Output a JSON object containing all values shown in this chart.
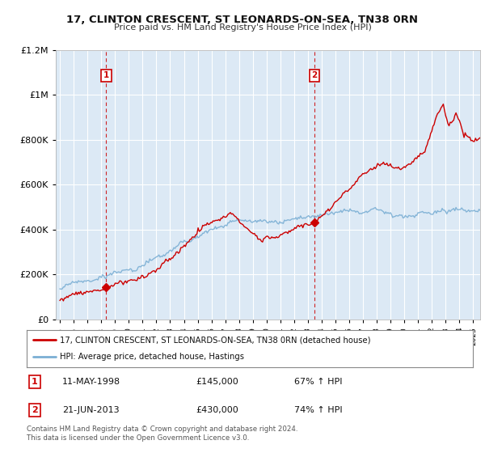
{
  "title": "17, CLINTON CRESCENT, ST LEONARDS-ON-SEA, TN38 0RN",
  "subtitle": "Price paid vs. HM Land Registry's House Price Index (HPI)",
  "legend_line1": "17, CLINTON CRESCENT, ST LEONARDS-ON-SEA, TN38 0RN (detached house)",
  "legend_line2": "HPI: Average price, detached house, Hastings",
  "footnote": "Contains HM Land Registry data © Crown copyright and database right 2024.\nThis data is licensed under the Open Government Licence v3.0.",
  "annotation1_label": "1",
  "annotation1_date": "11-MAY-1998",
  "annotation1_price": "£145,000",
  "annotation1_hpi": "67% ↑ HPI",
  "annotation2_label": "2",
  "annotation2_date": "21-JUN-2013",
  "annotation2_price": "£430,000",
  "annotation2_hpi": "74% ↑ HPI",
  "sale1_x": 1998.36,
  "sale1_y": 145000,
  "sale2_x": 2013.47,
  "sale2_y": 430000,
  "ylim": [
    0,
    1200000
  ],
  "yticks": [
    0,
    200000,
    400000,
    600000,
    800000,
    1000000,
    1200000
  ],
  "xlim_start": 1994.7,
  "xlim_end": 2025.5,
  "red_color": "#cc0000",
  "blue_color": "#7bafd4",
  "plot_bg": "#dce9f5",
  "fig_bg": "#ffffff",
  "grid_color": "#ffffff",
  "dashed_color": "#cc0000"
}
